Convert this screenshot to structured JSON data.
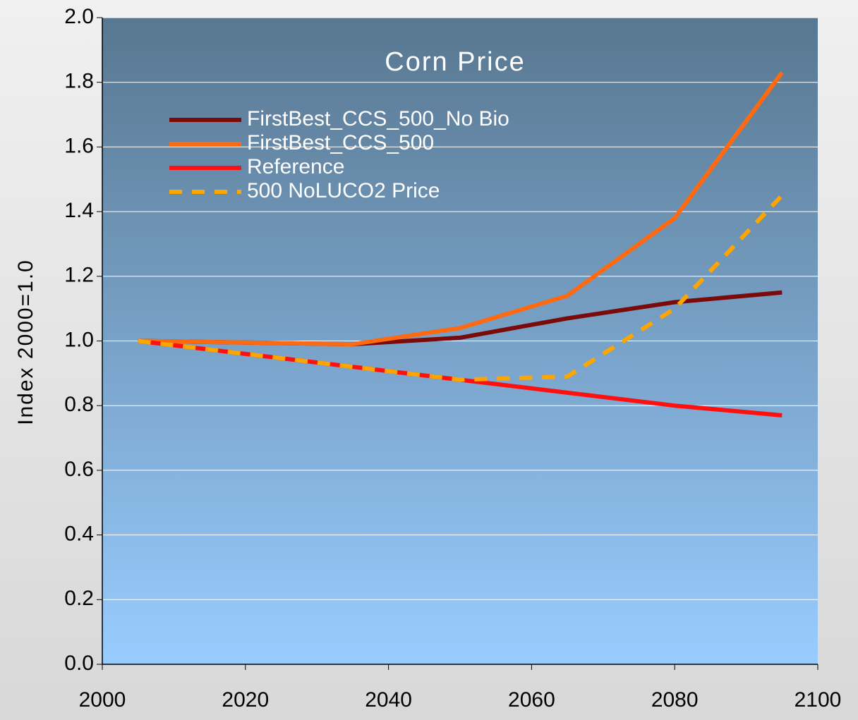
{
  "chart_data": {
    "type": "line",
    "title": "Corn Price",
    "y_label": "Index 2000=1.0",
    "x": [
      2005,
      2035,
      2050,
      2065,
      2080,
      2095
    ],
    "series": [
      {
        "name": "FirstBest_CCS_500_No Bio",
        "color": "#7b0a0a",
        "values": [
          1.0,
          0.99,
          1.01,
          1.07,
          1.12,
          1.15
        ]
      },
      {
        "name": "FirstBest_CCS_500",
        "color": "#ff6a10",
        "values": [
          1.0,
          0.99,
          1.04,
          1.14,
          1.38,
          1.83
        ]
      },
      {
        "name": "Reference",
        "color": "#ff1010",
        "values": [
          1.0,
          0.92,
          0.88,
          0.84,
          0.8,
          0.77
        ]
      },
      {
        "name": "500 NoLUCO2 Price",
        "color": "#ffa500",
        "dashed": true,
        "values": [
          1.0,
          0.92,
          0.88,
          0.89,
          1.1,
          1.45
        ]
      }
    ],
    "xlim": [
      2000,
      2100
    ],
    "xticks": [
      2000,
      2020,
      2040,
      2060,
      2080,
      2100
    ],
    "ylim": [
      0,
      2
    ],
    "yticks": [
      {
        "value": 0,
        "label": "0.0"
      },
      0.2,
      0.4,
      0.6,
      0.8,
      {
        "value": 1,
        "label": "1.0"
      },
      1.2,
      1.4,
      1.6,
      1.8,
      {
        "value": 2,
        "label": "2.0"
      }
    ],
    "grid": true
  }
}
